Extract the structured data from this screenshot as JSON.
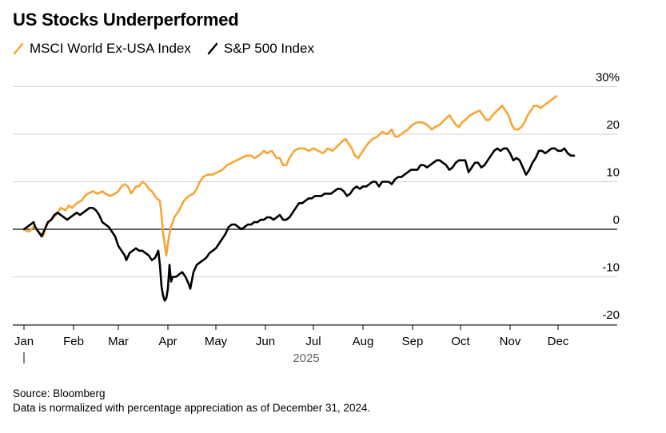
{
  "chart_data": {
    "type": "line",
    "title": "US Stocks Underperformed",
    "xlabel": "2025",
    "ylabel": "",
    "ylim": [
      -20,
      30
    ],
    "y_ticks": [
      {
        "value": 30,
        "label": "30%"
      },
      {
        "value": 20,
        "label": "20"
      },
      {
        "value": 10,
        "label": "10"
      },
      {
        "value": 0,
        "label": "0"
      },
      {
        "value": -10,
        "label": "-10"
      },
      {
        "value": -20,
        "label": "-20"
      }
    ],
    "x_ticks": [
      {
        "day": 0,
        "label": "Jan"
      },
      {
        "day": 31,
        "label": "Feb"
      },
      {
        "day": 59,
        "label": "Mar"
      },
      {
        "day": 90,
        "label": "Apr"
      },
      {
        "day": 120,
        "label": "May"
      },
      {
        "day": 151,
        "label": "Jun"
      },
      {
        "day": 181,
        "label": "Jul"
      },
      {
        "day": 212,
        "label": "Aug"
      },
      {
        "day": 243,
        "label": "Sep"
      },
      {
        "day": 273,
        "label": "Oct"
      },
      {
        "day": 304,
        "label": "Nov"
      },
      {
        "day": 334,
        "label": "Dec"
      }
    ],
    "series": [
      {
        "name": "MSCI World Ex-USA Index",
        "color": "#f7a535",
        "points": [
          [
            0,
            0
          ],
          [
            3,
            -0.5
          ],
          [
            6,
            0.5
          ],
          [
            8,
            -0.2
          ],
          [
            10,
            -0.8
          ],
          [
            12,
            -1.5
          ],
          [
            14,
            1
          ],
          [
            17,
            2
          ],
          [
            20,
            3
          ],
          [
            23,
            4.5
          ],
          [
            26,
            4
          ],
          [
            28,
            5
          ],
          [
            30,
            4.5
          ],
          [
            33,
            5.5
          ],
          [
            36,
            6
          ],
          [
            38,
            7
          ],
          [
            40,
            7.5
          ],
          [
            43,
            8
          ],
          [
            46,
            7.5
          ],
          [
            49,
            8
          ],
          [
            51,
            7.5
          ],
          [
            54,
            7
          ],
          [
            57,
            7.5
          ],
          [
            59,
            8
          ],
          [
            61,
            9
          ],
          [
            63,
            9.5
          ],
          [
            65,
            9
          ],
          [
            67,
            7.5
          ],
          [
            70,
            9
          ],
          [
            72,
            9
          ],
          [
            74,
            10
          ],
          [
            76,
            9.5
          ],
          [
            78,
            8.5
          ],
          [
            80,
            8
          ],
          [
            83,
            6.5
          ],
          [
            85,
            6
          ],
          [
            86,
            3
          ],
          [
            87,
            -1
          ],
          [
            88,
            -3
          ],
          [
            89,
            -5.5
          ],
          [
            90,
            -3
          ],
          [
            91,
            -1
          ],
          [
            92,
            0.5
          ],
          [
            94,
            2.5
          ],
          [
            97,
            4
          ],
          [
            100,
            6
          ],
          [
            103,
            7
          ],
          [
            106,
            7.5
          ],
          [
            108,
            8.5
          ],
          [
            110,
            10
          ],
          [
            112,
            11
          ],
          [
            115,
            11.5
          ],
          [
            118,
            11.5
          ],
          [
            121,
            12
          ],
          [
            124,
            12.5
          ],
          [
            127,
            13.5
          ],
          [
            130,
            14
          ],
          [
            133,
            14.5
          ],
          [
            136,
            15
          ],
          [
            139,
            15.5
          ],
          [
            142,
            15.5
          ],
          [
            144,
            15
          ],
          [
            147,
            15.5
          ],
          [
            150,
            16.5
          ],
          [
            152,
            16
          ],
          [
            155,
            16.5
          ],
          [
            158,
            15
          ],
          [
            160,
            15
          ],
          [
            162,
            13.5
          ],
          [
            164,
            13.5
          ],
          [
            166,
            15
          ],
          [
            169,
            16.5
          ],
          [
            172,
            17
          ],
          [
            175,
            17
          ],
          [
            178,
            16.5
          ],
          [
            181,
            17
          ],
          [
            184,
            16.5
          ],
          [
            187,
            16
          ],
          [
            190,
            17
          ],
          [
            193,
            16.5
          ],
          [
            196,
            17.5
          ],
          [
            199,
            18.5
          ],
          [
            201,
            19
          ],
          [
            203,
            18
          ],
          [
            205,
            17
          ],
          [
            207,
            15.5
          ],
          [
            209,
            15
          ],
          [
            211,
            16
          ],
          [
            213,
            17
          ],
          [
            215,
            18
          ],
          [
            218,
            19
          ],
          [
            221,
            19.5
          ],
          [
            224,
            20.5
          ],
          [
            227,
            20
          ],
          [
            230,
            21
          ],
          [
            232,
            19.5
          ],
          [
            234,
            19.5
          ],
          [
            236,
            20
          ],
          [
            238,
            20.5
          ],
          [
            240,
            21
          ],
          [
            243,
            22
          ],
          [
            246,
            22.5
          ],
          [
            249,
            22.5
          ],
          [
            252,
            22
          ],
          [
            255,
            21
          ],
          [
            257,
            21.5
          ],
          [
            260,
            22
          ],
          [
            263,
            23
          ],
          [
            266,
            24
          ],
          [
            268,
            23
          ],
          [
            270,
            22
          ],
          [
            272,
            21.5
          ],
          [
            274,
            22.5
          ],
          [
            276,
            23
          ],
          [
            279,
            24
          ],
          [
            282,
            24.5
          ],
          [
            285,
            25
          ],
          [
            287,
            24
          ],
          [
            289,
            23
          ],
          [
            291,
            23
          ],
          [
            293,
            24
          ],
          [
            296,
            25
          ],
          [
            299,
            26
          ],
          [
            301,
            25
          ],
          [
            303,
            24
          ],
          [
            305,
            22
          ],
          [
            307,
            21
          ],
          [
            309,
            21
          ],
          [
            311,
            21.5
          ],
          [
            313,
            22.5
          ],
          [
            315,
            24
          ],
          [
            317,
            25
          ],
          [
            319,
            26
          ],
          [
            321,
            26
          ],
          [
            323,
            25.5
          ],
          [
            325,
            26
          ],
          [
            327,
            26.5
          ],
          [
            329,
            27
          ],
          [
            331,
            27.5
          ],
          [
            333,
            28
          ]
        ]
      },
      {
        "name": "S&P 500 Index",
        "color": "#000000",
        "points": [
          [
            0,
            0
          ],
          [
            2,
            0.5
          ],
          [
            4,
            1
          ],
          [
            6,
            1.5
          ],
          [
            7,
            0.5
          ],
          [
            9,
            -0.5
          ],
          [
            11,
            -1.5
          ],
          [
            13,
            0
          ],
          [
            15,
            1.5
          ],
          [
            17,
            2
          ],
          [
            19,
            3
          ],
          [
            21,
            3.5
          ],
          [
            23,
            3
          ],
          [
            25,
            2.5
          ],
          [
            27,
            2
          ],
          [
            29,
            2.5
          ],
          [
            31,
            3
          ],
          [
            33,
            3.5
          ],
          [
            35,
            3
          ],
          [
            37,
            3.5
          ],
          [
            39,
            4
          ],
          [
            41,
            4.5
          ],
          [
            43,
            4.5
          ],
          [
            45,
            4
          ],
          [
            47,
            3
          ],
          [
            49,
            1.5
          ],
          [
            51,
            1
          ],
          [
            53,
            0.5
          ],
          [
            55,
            -0.5
          ],
          [
            57,
            -1.5
          ],
          [
            59,
            -3.5
          ],
          [
            61,
            -4.5
          ],
          [
            63,
            -5.5
          ],
          [
            64,
            -6.5
          ],
          [
            66,
            -5
          ],
          [
            68,
            -4.5
          ],
          [
            70,
            -4
          ],
          [
            72,
            -4.5
          ],
          [
            74,
            -4.5
          ],
          [
            76,
            -5
          ],
          [
            78,
            -5.5
          ],
          [
            80,
            -6.5
          ],
          [
            82,
            -6
          ],
          [
            84,
            -4.5
          ],
          [
            85,
            -7.5
          ],
          [
            86,
            -12
          ],
          [
            87,
            -14
          ],
          [
            88,
            -15
          ],
          [
            89,
            -14.5
          ],
          [
            90,
            -12.5
          ],
          [
            91,
            -7.5
          ],
          [
            92,
            -11
          ],
          [
            93,
            -10
          ],
          [
            95,
            -10
          ],
          [
            97,
            -9.5
          ],
          [
            99,
            -9
          ],
          [
            101,
            -10
          ],
          [
            103,
            -11.5
          ],
          [
            104,
            -12.5
          ],
          [
            106,
            -9
          ],
          [
            108,
            -7.5
          ],
          [
            110,
            -7
          ],
          [
            112,
            -6.5
          ],
          [
            114,
            -6
          ],
          [
            116,
            -5
          ],
          [
            118,
            -4.5
          ],
          [
            120,
            -4
          ],
          [
            122,
            -3
          ],
          [
            124,
            -2
          ],
          [
            126,
            -1
          ],
          [
            128,
            0.5
          ],
          [
            130,
            1
          ],
          [
            132,
            1
          ],
          [
            134,
            0.5
          ],
          [
            136,
            0
          ],
          [
            138,
            0.5
          ],
          [
            140,
            1
          ],
          [
            142,
            1
          ],
          [
            144,
            1.5
          ],
          [
            146,
            1.5
          ],
          [
            148,
            2
          ],
          [
            150,
            2
          ],
          [
            152,
            2.5
          ],
          [
            154,
            2.5
          ],
          [
            156,
            2
          ],
          [
            158,
            2.5
          ],
          [
            160,
            3
          ],
          [
            162,
            2
          ],
          [
            164,
            2
          ],
          [
            166,
            2.5
          ],
          [
            168,
            3.5
          ],
          [
            170,
            4.5
          ],
          [
            172,
            5.5
          ],
          [
            174,
            5.5
          ],
          [
            176,
            6
          ],
          [
            178,
            6.5
          ],
          [
            180,
            6.5
          ],
          [
            182,
            7
          ],
          [
            184,
            7
          ],
          [
            186,
            7
          ],
          [
            188,
            7.5
          ],
          [
            190,
            7.5
          ],
          [
            192,
            7.5
          ],
          [
            194,
            8
          ],
          [
            196,
            8.5
          ],
          [
            198,
            8.5
          ],
          [
            200,
            8
          ],
          [
            202,
            7
          ],
          [
            204,
            7.5
          ],
          [
            206,
            8.5
          ],
          [
            208,
            9
          ],
          [
            210,
            8.5
          ],
          [
            212,
            9
          ],
          [
            214,
            9
          ],
          [
            216,
            9.5
          ],
          [
            218,
            10
          ],
          [
            220,
            10
          ],
          [
            222,
            9
          ],
          [
            224,
            10
          ],
          [
            226,
            10
          ],
          [
            228,
            10
          ],
          [
            230,
            9.5
          ],
          [
            232,
            10.5
          ],
          [
            234,
            11
          ],
          [
            236,
            11
          ],
          [
            238,
            11.5
          ],
          [
            240,
            12
          ],
          [
            242,
            12.5
          ],
          [
            244,
            12.5
          ],
          [
            246,
            12.5
          ],
          [
            248,
            13.5
          ],
          [
            250,
            13.5
          ],
          [
            252,
            13
          ],
          [
            254,
            13.5
          ],
          [
            256,
            14
          ],
          [
            258,
            14.5
          ],
          [
            260,
            14.5
          ],
          [
            262,
            14
          ],
          [
            264,
            13.5
          ],
          [
            266,
            12.5
          ],
          [
            268,
            13
          ],
          [
            270,
            14
          ],
          [
            272,
            14.5
          ],
          [
            274,
            14.5
          ],
          [
            276,
            14.5
          ],
          [
            278,
            12
          ],
          [
            280,
            13
          ],
          [
            282,
            14
          ],
          [
            284,
            14
          ],
          [
            286,
            13
          ],
          [
            288,
            13.5
          ],
          [
            290,
            14.5
          ],
          [
            292,
            15.5
          ],
          [
            294,
            16.5
          ],
          [
            296,
            17
          ],
          [
            298,
            16.5
          ],
          [
            300,
            17
          ],
          [
            302,
            17
          ],
          [
            304,
            16
          ],
          [
            306,
            14.5
          ],
          [
            308,
            15
          ],
          [
            310,
            14.5
          ],
          [
            312,
            13
          ],
          [
            314,
            11.5
          ],
          [
            316,
            12.5
          ],
          [
            318,
            14
          ],
          [
            320,
            15
          ],
          [
            322,
            16.5
          ],
          [
            324,
            16.5
          ],
          [
            326,
            16
          ],
          [
            328,
            16.5
          ],
          [
            330,
            17
          ],
          [
            332,
            17
          ],
          [
            334,
            16.5
          ],
          [
            336,
            16.5
          ],
          [
            338,
            17
          ],
          [
            340,
            16
          ],
          [
            342,
            15.5
          ],
          [
            344,
            15.5
          ]
        ]
      }
    ],
    "source": "Source: Bloomberg",
    "note": "Data is normalized with percentage appreciation as of December 31, 2024."
  }
}
